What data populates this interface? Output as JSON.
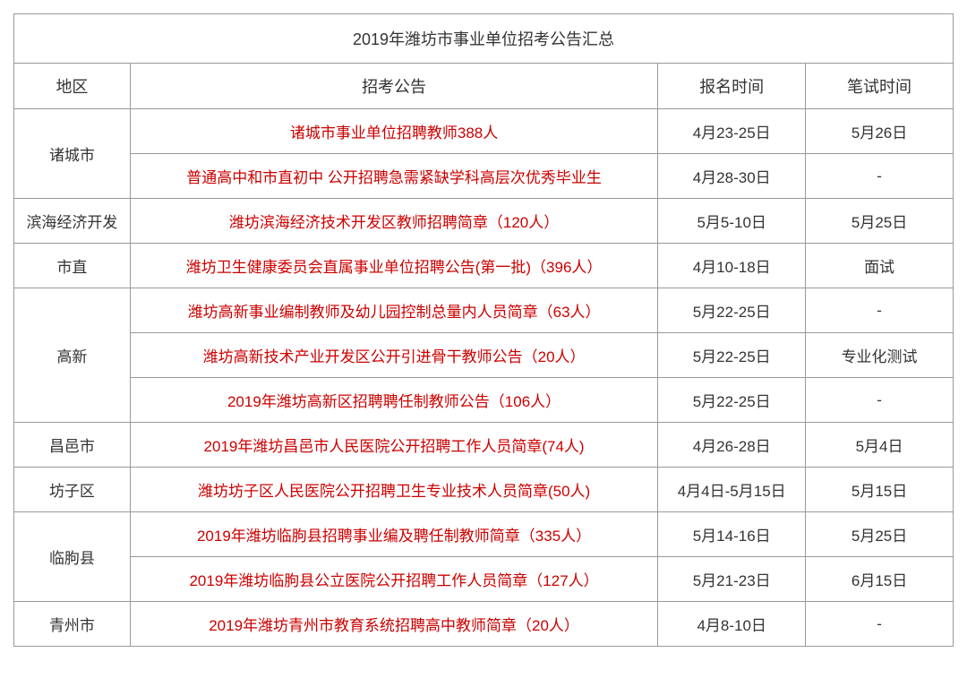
{
  "table": {
    "title": "2019年潍坊市事业单位招考公告汇总",
    "headers": {
      "region": "地区",
      "announcement": "招考公告",
      "signup_time": "报名时间",
      "exam_time": "笔试时间"
    },
    "rows": [
      {
        "region": "诸城市",
        "rowspan": 2,
        "announcement": "诸城市事业单位招聘教师388人",
        "signup_time": "4月23-25日",
        "exam_time": "5月26日"
      },
      {
        "announcement": "普通高中和市直初中 公开招聘急需紧缺学科高层次优秀毕业生",
        "signup_time": "4月28-30日",
        "exam_time": "-"
      },
      {
        "region": "滨海经济开发",
        "rowspan": 1,
        "announcement": "潍坊滨海经济技术开发区教师招聘简章（120人）",
        "signup_time": "5月5-10日",
        "exam_time": "5月25日"
      },
      {
        "region": "市直",
        "rowspan": 1,
        "announcement": "潍坊卫生健康委员会直属事业单位招聘公告(第一批)（396人）",
        "signup_time": "4月10-18日",
        "exam_time": "面试"
      },
      {
        "region": "高新",
        "rowspan": 3,
        "announcement": "潍坊高新事业编制教师及幼儿园控制总量内人员简章（63人）",
        "signup_time": "5月22-25日",
        "exam_time": "-"
      },
      {
        "announcement": "潍坊高新技术产业开发区公开引进骨干教师公告（20人）",
        "signup_time": "5月22-25日",
        "exam_time": "专业化测试"
      },
      {
        "announcement": "2019年潍坊高新区招聘聘任制教师公告（106人）",
        "signup_time": "5月22-25日",
        "exam_time": "-"
      },
      {
        "region": "昌邑市",
        "rowspan": 1,
        "announcement": "2019年潍坊昌邑市人民医院公开招聘工作人员简章(74人)",
        "signup_time": "4月26-28日",
        "exam_time": "5月4日"
      },
      {
        "region": "坊子区",
        "rowspan": 1,
        "announcement": "潍坊坊子区人民医院公开招聘卫生专业技术人员简章(50人)",
        "signup_time": "4月4日-5月15日",
        "exam_time": "5月15日"
      },
      {
        "region": "临朐县",
        "rowspan": 2,
        "announcement": "2019年潍坊临朐县招聘事业编及聘任制教师简章（335人）",
        "signup_time": "5月14-16日",
        "exam_time": "5月25日"
      },
      {
        "announcement": "2019年潍坊临朐县公立医院公开招聘工作人员简章（127人）",
        "signup_time": "5月21-23日",
        "exam_time": "6月15日"
      },
      {
        "region": "青州市",
        "rowspan": 1,
        "announcement": "2019年潍坊青州市教育系统招聘高中教师简章（20人）",
        "signup_time": "4月8-10日",
        "exam_time": "-"
      }
    ]
  },
  "styles": {
    "announcement_color": "#cc0000",
    "text_color": "#333333",
    "border_color": "#999999",
    "background_color": "#ffffff",
    "title_fontsize": 18,
    "cell_fontsize": 17
  }
}
